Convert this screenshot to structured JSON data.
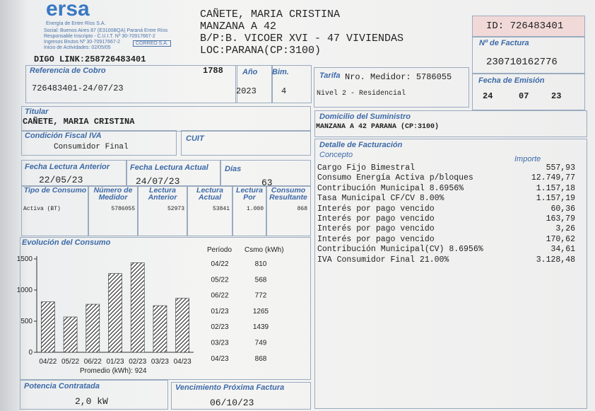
{
  "header": {
    "logo": "ersa",
    "company": "Energía de Entre Ríos S.A.",
    "address": "Social: Buenos Aires 87 (E3100BQA) Paraná Entre Ríos",
    "cuit": "Responsable Inscripto - C.U.I.T. Nº 30-70917667-2",
    "iibb": "Ingresos Brutos Nº 30-70917667-2",
    "inicio": "Inicio de Actividades: 02/05/05",
    "correo": "CORREO S.A."
  },
  "customer": {
    "name": "CAÑETE, MARIA CRISTINA",
    "lines": [
      "MANZANA A 42",
      "B/P:B. VICOER XVI - 47 VIVIENDAS",
      "LOC:PARANA(CP:3100)"
    ]
  },
  "invoice": {
    "id": "ID: 726483401",
    "number_label": "Nº de Factura",
    "number": "230710162776",
    "link": "DIGO LINK:258726483401",
    "ref_label": "Referencia de Cobro",
    "ref": "726483401-24/07/23",
    "code": "1788",
    "year_label": "Año",
    "year": "2023",
    "bim_label": "Bim.",
    "bim": "4",
    "tarifa_label": "Tarifa",
    "medidor": "Nro. Medidor: 5786055",
    "nivel": "Nivel 2 - Residencial",
    "emision_label": "Fecha de Emisión",
    "emision": [
      "24",
      "07",
      "23"
    ]
  },
  "titular": {
    "label": "Titular",
    "value": "CAÑETE, MARIA CRISTINA"
  },
  "domicilio": {
    "label": "Domicilio del Suministro",
    "value": "MANZANA A 42 PARANA (CP:3100)"
  },
  "fiscal": {
    "label": "Condición Fiscal IVA",
    "value": "Consumidor Final",
    "cuit_label": "CUIT"
  },
  "lecturas": {
    "anterior_label": "Fecha Lectura Anterior",
    "anterior": "22/05/23",
    "actual_label": "Fecha Lectura Actual",
    "actual": "24/07/23",
    "dias_label": "Días",
    "dias": "63",
    "headers": [
      "Tipo de Consumo",
      "Número de Medidor",
      "Lectura Anterior",
      "Lectura Actual",
      "Lectura Por",
      "Consumo Resultante"
    ],
    "row": [
      "Activa (BT)",
      "5786055",
      "52973",
      "53841",
      "1.000",
      "868"
    ]
  },
  "detalle": {
    "title": "Detalle de Facturación",
    "concepto": "Concepto",
    "importe": "Importe",
    "rows": [
      [
        "Cargo Fijo Bimestral",
        "557,93"
      ],
      [
        "Consumo Energía Activa p/bloques",
        "12.749,77"
      ],
      [
        "Contribución Municipal 8.6956%",
        "1.157,18"
      ],
      [
        "Tasa Municipal CF/CV 8.00%",
        "1.157,19"
      ],
      [
        "Interés por pago vencido",
        "60,36"
      ],
      [
        "Interés por pago vencido",
        "163,79"
      ],
      [
        "Interés por pago vencido",
        "3,26"
      ],
      [
        "Interés por pago vencido",
        "170,62"
      ],
      [
        "Contribución Municipal(CV) 8.6956%",
        "34,61"
      ],
      [
        "IVA Consumidor Final 21.00%",
        "3.128,48"
      ]
    ]
  },
  "chart_data": {
    "type": "bar",
    "title": "Evolución del Consumo",
    "period_label": "Período",
    "value_label": "Csmo (kWh)",
    "average": "Promedio (kWh): 924",
    "categories": [
      "04/22",
      "05/22",
      "06/22",
      "01/23",
      "02/23",
      "03/23",
      "04/23"
    ],
    "values": [
      810,
      568,
      772,
      1265,
      1439,
      749,
      868
    ],
    "color": "#333333",
    "ylim": [
      0,
      1500
    ],
    "yticks": [
      0,
      500,
      1000,
      1500
    ]
  },
  "footer": {
    "potencia_label": "Potencia Contratada",
    "potencia": "2,0 kW",
    "venc_label": "Vencimiento Próxima Factura",
    "venc": "06/10/23"
  }
}
